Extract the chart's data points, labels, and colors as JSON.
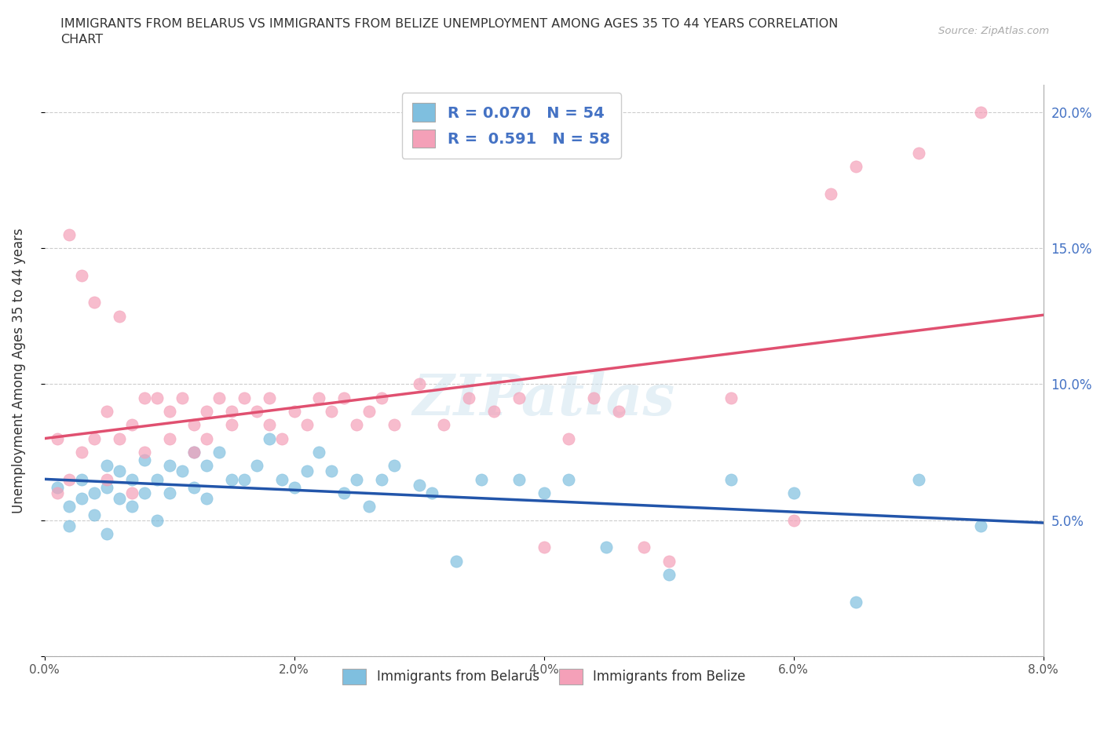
{
  "title": "IMMIGRANTS FROM BELARUS VS IMMIGRANTS FROM BELIZE UNEMPLOYMENT AMONG AGES 35 TO 44 YEARS CORRELATION\nCHART",
  "source_text": "Source: ZipAtlas.com",
  "ylabel": "Unemployment Among Ages 35 to 44 years",
  "xlim": [
    0.0,
    0.08
  ],
  "ylim": [
    0.0,
    0.21
  ],
  "x_ticks": [
    0.0,
    0.02,
    0.04,
    0.06,
    0.08
  ],
  "x_tick_labels": [
    "0.0%",
    "2.0%",
    "4.0%",
    "6.0%",
    "8.0%"
  ],
  "y_ticks": [
    0.0,
    0.05,
    0.1,
    0.15,
    0.2
  ],
  "y_tick_labels_right": [
    "",
    "5.0%",
    "10.0%",
    "15.0%",
    "20.0%"
  ],
  "color_belarus": "#7fbfdf",
  "color_belize": "#f4a0b8",
  "line_color_belarus": "#2255aa",
  "line_color_belize": "#e05070",
  "R_belarus": 0.07,
  "N_belarus": 54,
  "R_belize": 0.591,
  "N_belize": 58,
  "legend_label_belarus": "Immigrants from Belarus",
  "legend_label_belize": "Immigrants from Belize",
  "watermark": "ZIPatlas",
  "belarus_x": [
    0.001,
    0.002,
    0.002,
    0.003,
    0.003,
    0.004,
    0.004,
    0.005,
    0.005,
    0.005,
    0.006,
    0.006,
    0.007,
    0.007,
    0.008,
    0.008,
    0.009,
    0.009,
    0.01,
    0.01,
    0.011,
    0.012,
    0.012,
    0.013,
    0.013,
    0.014,
    0.015,
    0.016,
    0.017,
    0.018,
    0.019,
    0.02,
    0.021,
    0.022,
    0.023,
    0.024,
    0.025,
    0.026,
    0.027,
    0.028,
    0.03,
    0.031,
    0.033,
    0.035,
    0.038,
    0.04,
    0.042,
    0.045,
    0.05,
    0.055,
    0.06,
    0.065,
    0.07,
    0.075
  ],
  "belarus_y": [
    0.062,
    0.055,
    0.048,
    0.065,
    0.058,
    0.06,
    0.052,
    0.07,
    0.062,
    0.045,
    0.068,
    0.058,
    0.065,
    0.055,
    0.072,
    0.06,
    0.065,
    0.05,
    0.07,
    0.06,
    0.068,
    0.075,
    0.062,
    0.07,
    0.058,
    0.075,
    0.065,
    0.065,
    0.07,
    0.08,
    0.065,
    0.062,
    0.068,
    0.075,
    0.068,
    0.06,
    0.065,
    0.055,
    0.065,
    0.07,
    0.063,
    0.06,
    0.035,
    0.065,
    0.065,
    0.06,
    0.065,
    0.04,
    0.03,
    0.065,
    0.06,
    0.02,
    0.065,
    0.048
  ],
  "belize_x": [
    0.001,
    0.001,
    0.002,
    0.002,
    0.003,
    0.003,
    0.004,
    0.004,
    0.005,
    0.005,
    0.006,
    0.006,
    0.007,
    0.007,
    0.008,
    0.008,
    0.009,
    0.01,
    0.01,
    0.011,
    0.012,
    0.012,
    0.013,
    0.013,
    0.014,
    0.015,
    0.015,
    0.016,
    0.017,
    0.018,
    0.018,
    0.019,
    0.02,
    0.021,
    0.022,
    0.023,
    0.024,
    0.025,
    0.026,
    0.027,
    0.028,
    0.03,
    0.032,
    0.034,
    0.036,
    0.038,
    0.04,
    0.042,
    0.044,
    0.046,
    0.048,
    0.05,
    0.055,
    0.06,
    0.063,
    0.065,
    0.07,
    0.075
  ],
  "belize_y": [
    0.08,
    0.06,
    0.065,
    0.155,
    0.075,
    0.14,
    0.13,
    0.08,
    0.065,
    0.09,
    0.125,
    0.08,
    0.085,
    0.06,
    0.095,
    0.075,
    0.095,
    0.09,
    0.08,
    0.095,
    0.085,
    0.075,
    0.09,
    0.08,
    0.095,
    0.09,
    0.085,
    0.095,
    0.09,
    0.095,
    0.085,
    0.08,
    0.09,
    0.085,
    0.095,
    0.09,
    0.095,
    0.085,
    0.09,
    0.095,
    0.085,
    0.1,
    0.085,
    0.095,
    0.09,
    0.095,
    0.04,
    0.08,
    0.095,
    0.09,
    0.04,
    0.035,
    0.095,
    0.05,
    0.17,
    0.18,
    0.185,
    0.2
  ]
}
